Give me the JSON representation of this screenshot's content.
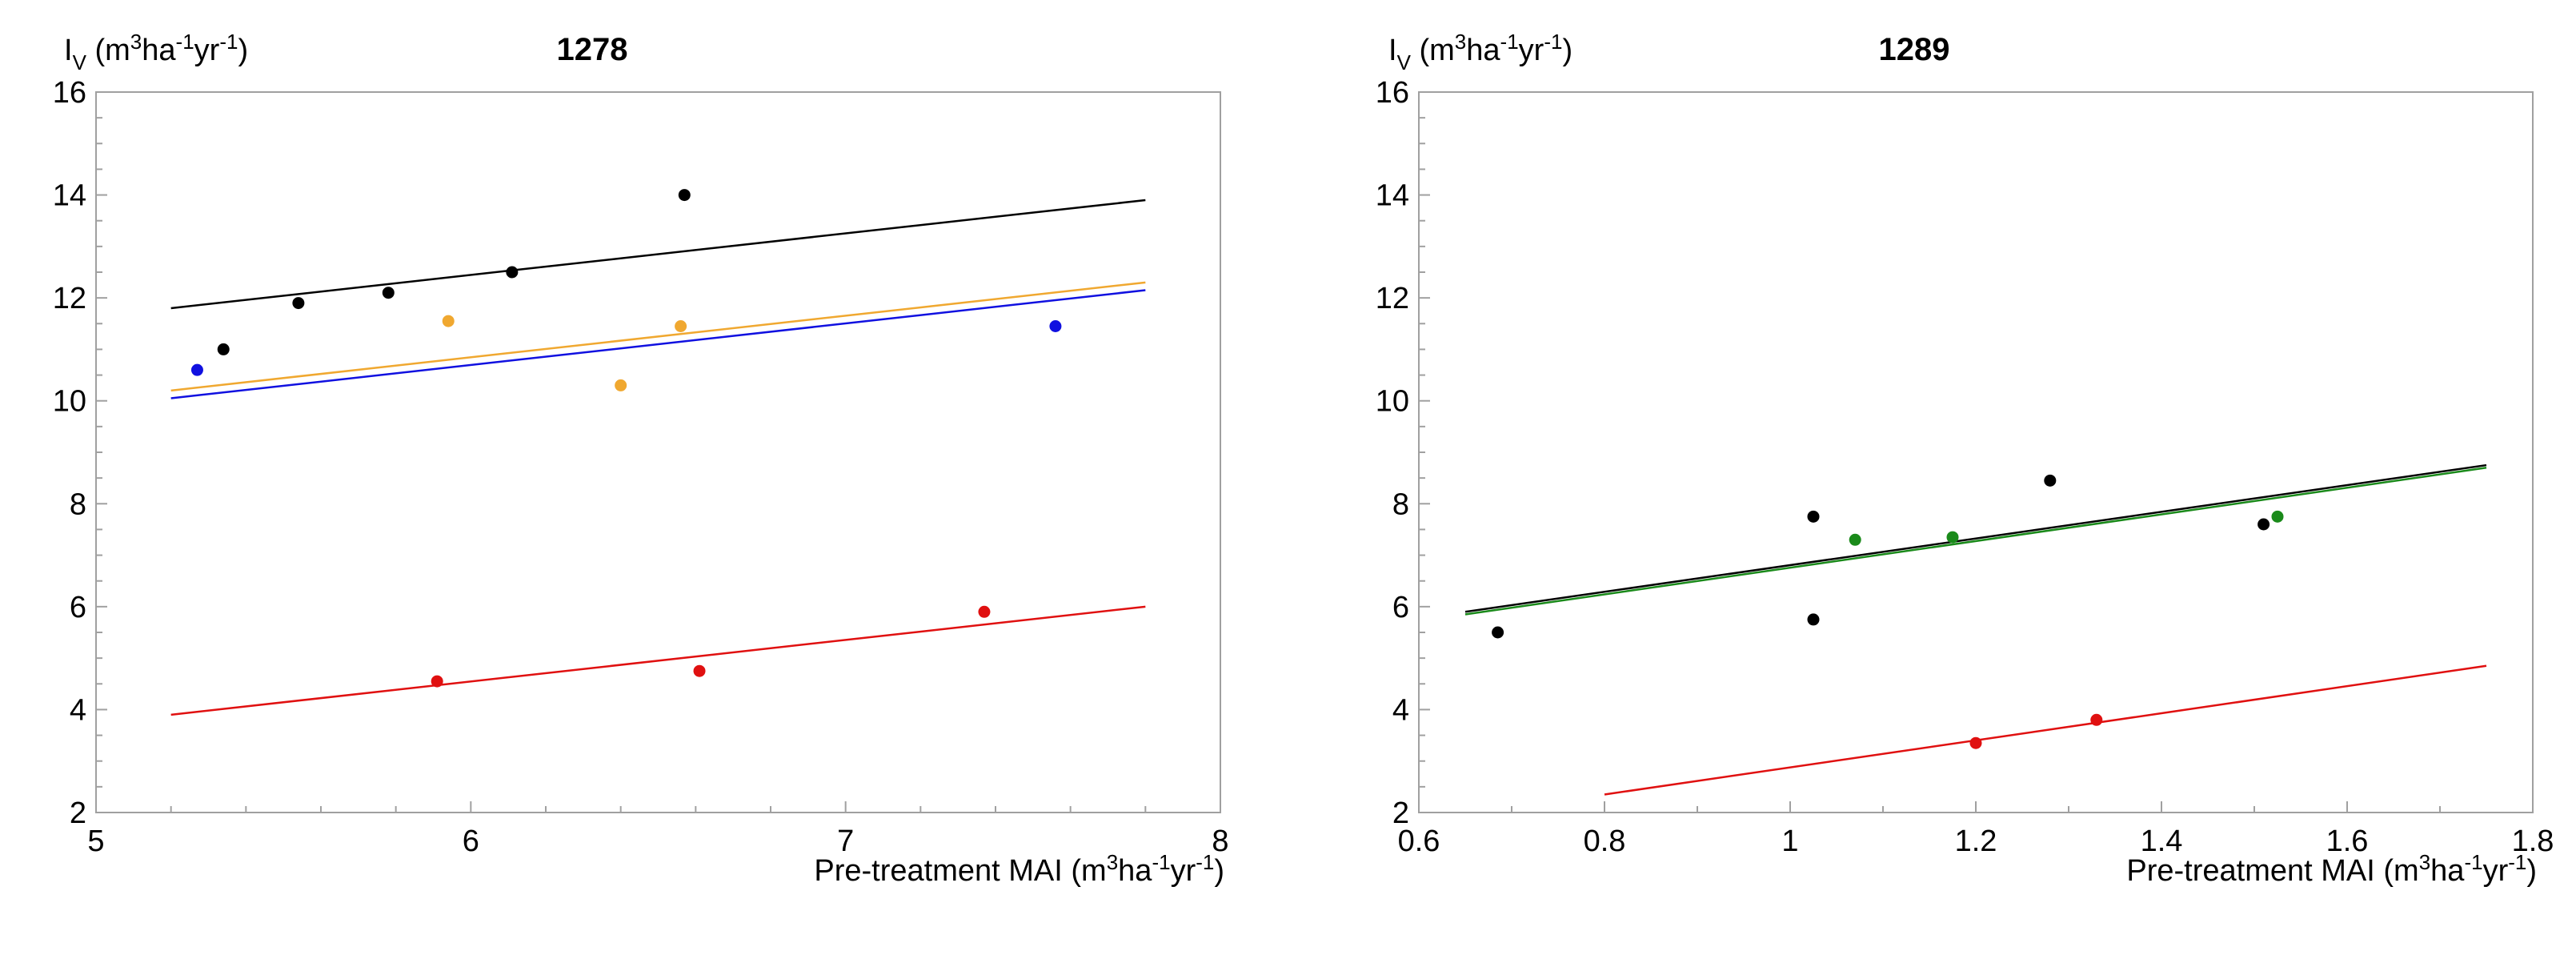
{
  "chart_data": [
    {
      "type": "scatter",
      "title": "1278",
      "ylabel": {
        "main": "I",
        "sub": "V",
        "units_open": " (m",
        "units_sup1": "3",
        "units_mid": "ha",
        "units_sup2": "-1",
        "units_mid2": "yr",
        "units_sup3": "-1",
        "units_close": ")"
      },
      "xlabel": {
        "main": "Pre-treatment MAI (m",
        "sup1": "3",
        "mid": "ha",
        "sup2": "-1",
        "mid2": "yr",
        "sup3": "-1",
        "close": ")"
      },
      "xlim": [
        5,
        8
      ],
      "ylim": [
        2,
        16
      ],
      "xticks": [
        5,
        6,
        7,
        8
      ],
      "xtick_labels": [
        "5",
        "6",
        "7",
        "8"
      ],
      "yticks": [
        2,
        4,
        6,
        8,
        10,
        12,
        14,
        16
      ],
      "ytick_labels": [
        "2",
        "4",
        "6",
        "8",
        "10",
        "12",
        "14",
        "16"
      ],
      "series": [
        {
          "name": "black",
          "color": "#000000",
          "x": [
            5.34,
            5.54,
            5.78,
            6.11,
            6.57
          ],
          "y": [
            11.0,
            11.9,
            12.1,
            12.5,
            14.0
          ],
          "fit": {
            "x": [
              5.2,
              7.8
            ],
            "y": [
              11.8,
              13.9
            ]
          }
        },
        {
          "name": "orange",
          "color": "#f0a830",
          "x": [
            5.94,
            6.4,
            6.56
          ],
          "y": [
            11.55,
            10.3,
            11.45
          ],
          "fit": {
            "x": [
              5.2,
              7.8
            ],
            "y": [
              10.2,
              12.3
            ]
          }
        },
        {
          "name": "blue",
          "color": "#1010e0",
          "x": [
            5.27,
            7.56
          ],
          "y": [
            10.6,
            11.45
          ],
          "fit": {
            "x": [
              5.2,
              7.8
            ],
            "y": [
              10.05,
              12.15
            ]
          }
        },
        {
          "name": "red",
          "color": "#e01010",
          "x": [
            5.91,
            6.61,
            7.37
          ],
          "y": [
            4.55,
            4.75,
            5.9
          ],
          "fit": {
            "x": [
              5.2,
              7.8
            ],
            "y": [
              3.9,
              6.0
            ]
          }
        }
      ]
    },
    {
      "type": "scatter",
      "title": "1289",
      "ylabel": {
        "main": "I",
        "sub": "V",
        "units_open": " (m",
        "units_sup1": "3",
        "units_mid": "ha",
        "units_sup2": "-1",
        "units_mid2": "yr",
        "units_sup3": "-1",
        "units_close": ")"
      },
      "xlabel": {
        "main": "Pre-treatment MAI (m",
        "sup1": "3",
        "mid": "ha",
        "sup2": "-1",
        "mid2": "yr",
        "sup3": "-1",
        "close": ")"
      },
      "xlim": [
        0.6,
        1.8
      ],
      "ylim": [
        2,
        16
      ],
      "xticks": [
        0.6,
        0.8,
        1.0,
        1.2,
        1.4,
        1.6,
        1.8
      ],
      "xtick_labels": [
        "0.6",
        "0.8",
        "1",
        "1.2",
        "1.4",
        "1.6",
        "1.8"
      ],
      "yticks": [
        2,
        4,
        6,
        8,
        10,
        12,
        14,
        16
      ],
      "ytick_labels": [
        "2",
        "4",
        "6",
        "8",
        "10",
        "12",
        "14",
        "16"
      ],
      "series": [
        {
          "name": "black",
          "color": "#000000",
          "x": [
            0.685,
            1.025,
            1.025,
            1.28,
            1.51
          ],
          "y": [
            5.5,
            7.75,
            5.75,
            8.45,
            7.6
          ],
          "fit": {
            "x": [
              0.65,
              1.75
            ],
            "y": [
              5.9,
              8.75
            ]
          }
        },
        {
          "name": "green",
          "color": "#1a8a1a",
          "x": [
            1.07,
            1.175,
            1.525
          ],
          "y": [
            7.3,
            7.35,
            7.75
          ],
          "fit": {
            "x": [
              0.65,
              1.75
            ],
            "y": [
              5.85,
              8.7
            ]
          }
        },
        {
          "name": "red",
          "color": "#e01010",
          "x": [
            1.2,
            1.33
          ],
          "y": [
            3.35,
            3.8
          ],
          "fit": {
            "x": [
              0.8,
              1.75
            ],
            "y": [
              2.35,
              4.85
            ]
          }
        }
      ]
    }
  ]
}
